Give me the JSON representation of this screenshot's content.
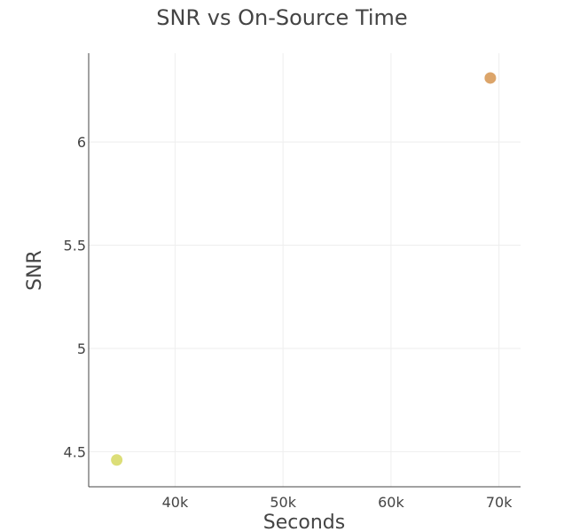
{
  "chart_data": {
    "type": "scatter",
    "title": "SNR vs On-Source Time",
    "xlabel": "Seconds",
    "ylabel": "SNR",
    "xlim": [
      32000,
      72000
    ],
    "ylim": [
      4.33,
      6.43
    ],
    "x_ticks": [
      40000,
      50000,
      60000,
      70000
    ],
    "x_tick_labels": [
      "40k",
      "50k",
      "60k",
      "70k"
    ],
    "y_ticks": [
      4.5,
      5,
      5.5,
      6
    ],
    "y_tick_labels": [
      "4.5",
      "5",
      "5.5",
      "6"
    ],
    "grid": true,
    "legend": "none",
    "points": [
      {
        "x": 34600,
        "y": 4.46,
        "color": "#dcde78"
      },
      {
        "x": 69200,
        "y": 6.31,
        "color": "#dca56a"
      }
    ]
  }
}
